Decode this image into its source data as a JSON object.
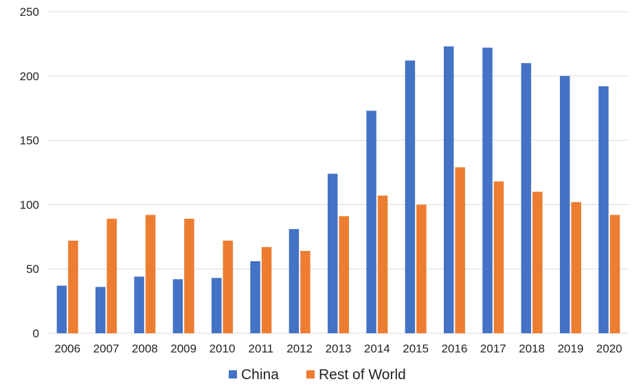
{
  "chart_data": {
    "type": "bar",
    "title": "",
    "xlabel": "",
    "ylabel": "",
    "categories": [
      "2006",
      "2007",
      "2008",
      "2009",
      "2010",
      "2011",
      "2012",
      "2013",
      "2014",
      "2015",
      "2016",
      "2017",
      "2018",
      "2019",
      "2020"
    ],
    "series": [
      {
        "name": "China",
        "color": "#4472C4",
        "values": [
          37,
          36,
          44,
          42,
          43,
          56,
          81,
          124,
          173,
          212,
          223,
          222,
          210,
          200,
          192
        ]
      },
      {
        "name": "Rest of World",
        "color": "#ED7D31",
        "values": [
          72,
          89,
          92,
          89,
          72,
          67,
          64,
          91,
          107,
          100,
          129,
          118,
          110,
          102,
          92
        ]
      }
    ],
    "ylim": [
      0,
      250
    ],
    "yticks": [
      0,
      50,
      100,
      150,
      200,
      250
    ],
    "grid": true,
    "legend_position": "bottom-center"
  },
  "colors": {
    "gridline": "#D9D9D9",
    "text": "#222222"
  }
}
